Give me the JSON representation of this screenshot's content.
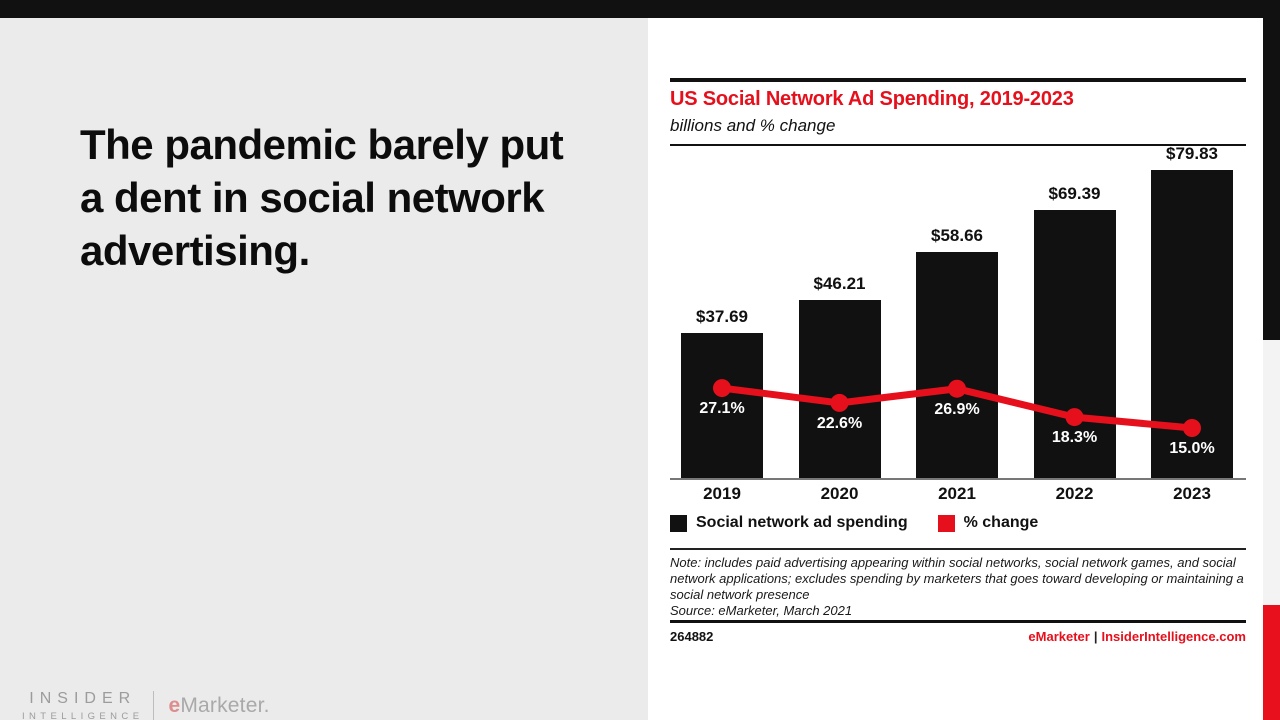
{
  "headline": {
    "text": "The pandemic barely put a dent in social network advertising."
  },
  "logo": {
    "insider": "INSIDER",
    "intelligence": "INTELLIGENCE",
    "emarketer_e": "e",
    "emarketer_rest": "Marketer."
  },
  "chart": {
    "title": "US Social Network Ad Spending, 2019-2023",
    "subtitle": "billions and % change",
    "legend": [
      {
        "label": "Social network ad spending",
        "color": "#111111"
      },
      {
        "label": "% change",
        "color": "#e5101c"
      }
    ],
    "note": "Note: includes paid advertising appearing within social networks, social network games, and social network applications; excludes spending by marketers that goes toward developing or maintaining a social network presence",
    "source": "Source: eMarketer, March 2021",
    "chart_id": "264882",
    "footer_brand": "eMarketer",
    "footer_pipe": "|",
    "footer_site": "InsiderIntelligence.com"
  },
  "chart_data": {
    "type": "bar",
    "subtype": "bar-line-combo",
    "title": "US Social Network Ad Spending, 2019-2023",
    "subtitle": "billions and % change",
    "categories": [
      "2019",
      "2020",
      "2021",
      "2022",
      "2023"
    ],
    "series": [
      {
        "name": "Social network ad spending",
        "type": "bar",
        "unit": "billions USD",
        "values": [
          37.69,
          46.21,
          58.66,
          69.39,
          79.83
        ],
        "labels": [
          "$37.69",
          "$46.21",
          "$58.66",
          "$69.39",
          "$79.83"
        ],
        "color": "#111111"
      },
      {
        "name": "% change",
        "type": "line",
        "unit": "percent",
        "values": [
          27.1,
          22.6,
          26.9,
          18.3,
          15.0
        ],
        "labels": [
          "27.1%",
          "22.6%",
          "26.9%",
          "18.3%",
          "15.0%"
        ],
        "color": "#e5101c"
      }
    ],
    "legend_position": "bottom",
    "grid": false,
    "value_labels_shown": true
  },
  "colors": {
    "accent_red": "#e5101c",
    "bar_black": "#111111",
    "left_panel_gray": "#ebebeb",
    "strip_gray": "#f3f3f3"
  }
}
